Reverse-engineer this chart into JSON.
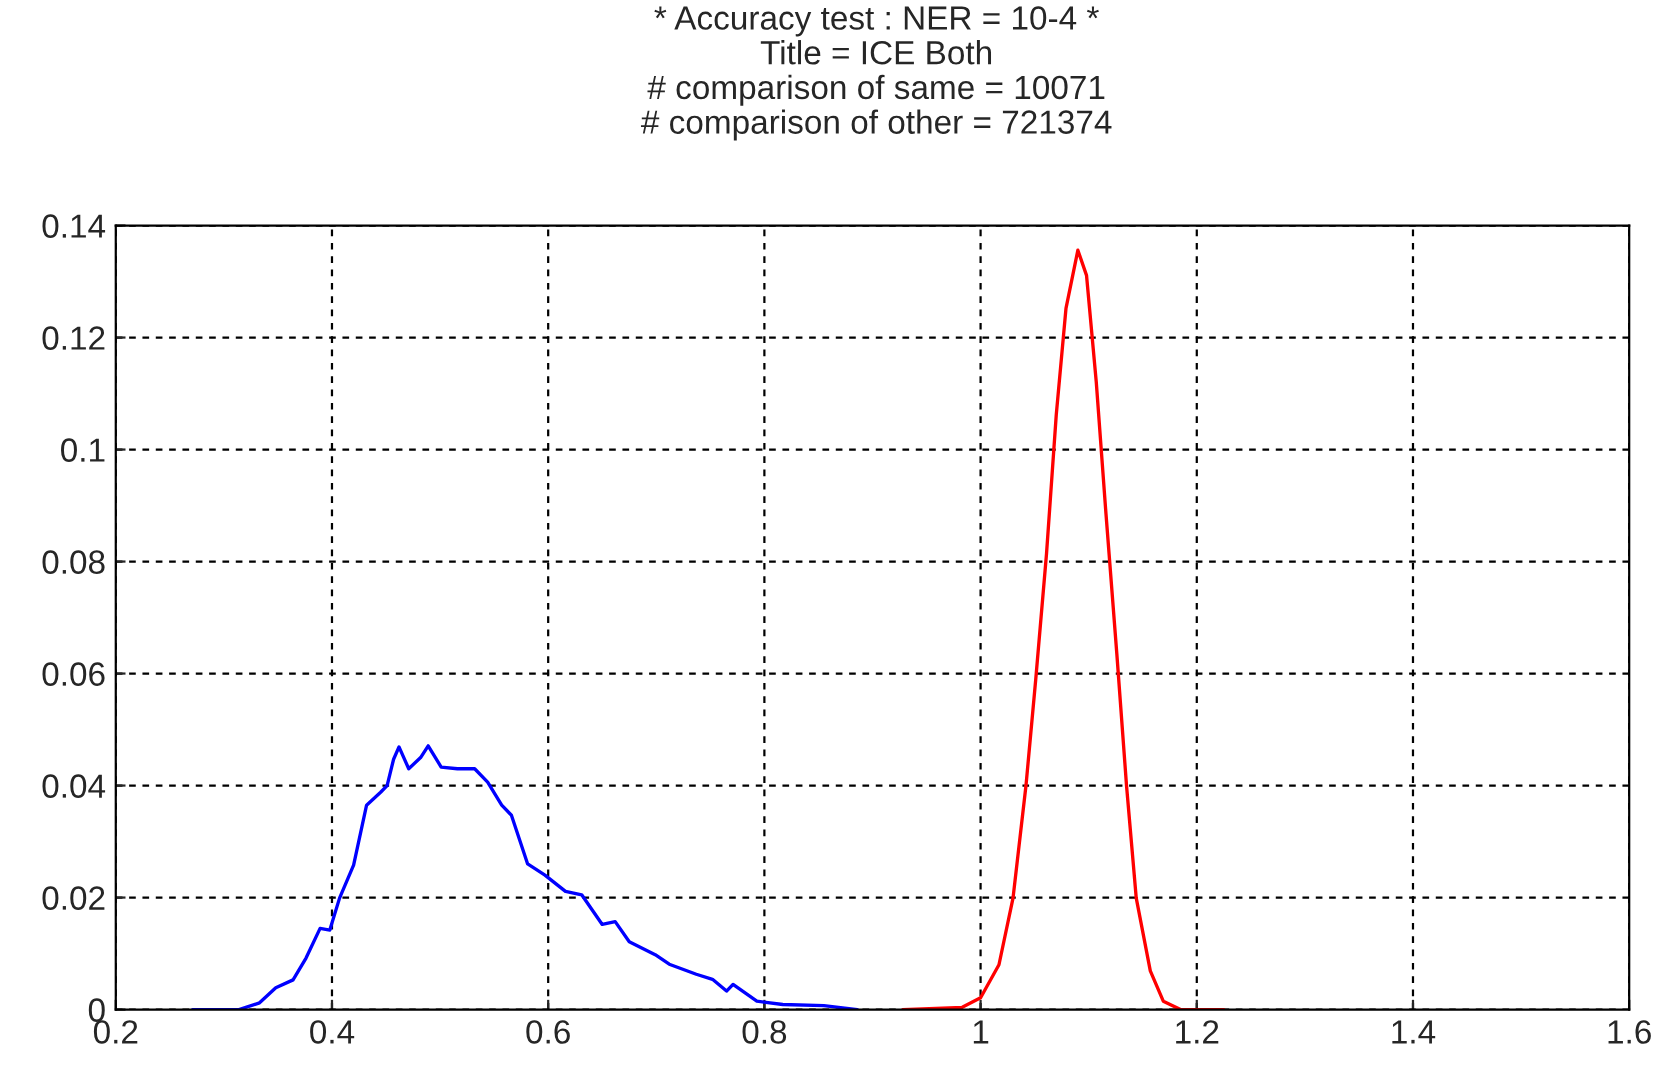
{
  "chart_data": {
    "type": "line",
    "title": "* Accuracy test : NER = 10-4 *",
    "subtitle": "Title = ICE Both\n# comparison of same = 10071\n# comparison of other = 721374",
    "series": [
      {
        "color": "#0000ff",
        "x": [
          0.271,
          0.314,
          0.333,
          0.348,
          0.364,
          0.376,
          0.389,
          0.398,
          0.407,
          0.42,
          0.432,
          0.445,
          0.451,
          0.457,
          0.462,
          0.471,
          0.482,
          0.489,
          0.501,
          0.516,
          0.532,
          0.544,
          0.557,
          0.566,
          0.581,
          0.597,
          0.616,
          0.631,
          0.65,
          0.662,
          0.675,
          0.699,
          0.712,
          0.737,
          0.752,
          0.765,
          0.771,
          0.793,
          0.817,
          0.855,
          0.886
        ],
        "values": [
          0,
          0,
          0.0012,
          0.0039,
          0.0053,
          0.0092,
          0.0145,
          0.0142,
          0.0199,
          0.0258,
          0.0365,
          0.0388,
          0.04,
          0.0447,
          0.0469,
          0.043,
          0.045,
          0.0471,
          0.0433,
          0.043,
          0.043,
          0.0406,
          0.0365,
          0.0347,
          0.026,
          0.024,
          0.0211,
          0.0205,
          0.0152,
          0.0157,
          0.0121,
          0.0098,
          0.0081,
          0.0063,
          0.0054,
          0.0033,
          0.0045,
          0.0015,
          0.0009,
          0.0007,
          0
        ]
      },
      {
        "color": "#ff0000",
        "x": [
          0.928,
          0.983,
          1.0,
          1.017,
          1.03,
          1.042,
          1.051,
          1.061,
          1.07,
          1.079,
          1.09,
          1.098,
          1.107,
          1.116,
          1.126,
          1.135,
          1.144,
          1.157,
          1.169,
          1.185,
          1.225
        ],
        "values": [
          0,
          0.0004,
          0.0021,
          0.008,
          0.0199,
          0.04,
          0.0589,
          0.0814,
          0.1062,
          0.1252,
          0.1356,
          0.1311,
          0.1121,
          0.0885,
          0.0636,
          0.04,
          0.0199,
          0.0069,
          0.0015,
          0,
          0
        ]
      }
    ],
    "xlim": [
      0.2,
      1.6
    ],
    "xticks": [
      0.2,
      0.4,
      0.6,
      0.8,
      1,
      1.2,
      1.4,
      1.6
    ],
    "ylim": [
      0,
      0.14
    ],
    "yticks": [
      0,
      0.02,
      0.04,
      0.06,
      0.08,
      0.1,
      0.12,
      0.14
    ],
    "grid": true,
    "line_style": "solid",
    "marker": "none"
  }
}
